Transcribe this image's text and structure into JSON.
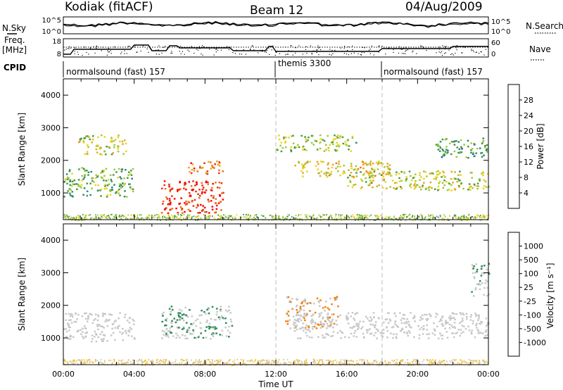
{
  "header": {
    "station": "Kodiak (fitACF)",
    "beam": "Beam 12",
    "date": "04/Aug/2009"
  },
  "side_labels": {
    "nsky": "N.Sky",
    "nsearch": "N.Search",
    "freq_line1": "Freq.",
    "freq_line2": "[MHz]",
    "nave": "Nave",
    "cpid": "CPID"
  },
  "noise_axis": {
    "left_ticks": [
      "10^5",
      "10^0"
    ],
    "right_ticks": [
      "10^5",
      "10^0"
    ]
  },
  "freq_axis": {
    "left_ticks": [
      "18",
      "8"
    ],
    "right_ticks": [
      "60",
      "0"
    ]
  },
  "cpid_segments": [
    {
      "label": "normalsound (fast) 157",
      "start_hour": 0,
      "end_hour": 12
    },
    {
      "label": "themis 3300",
      "start_hour": 12,
      "end_hour": 18
    },
    {
      "label": "normalsound (fast) 157",
      "start_hour": 18,
      "end_hour": 24
    }
  ],
  "power_colorbar": {
    "label": "Power [dB]",
    "ticks": [
      "4",
      "8",
      "12",
      "16",
      "20",
      "24",
      "28"
    ],
    "colors": [
      "#0000ff",
      "#1a4dbd",
      "#2d8a6e",
      "#4a9a3a",
      "#9ec83a",
      "#e8d320",
      "#f0a020",
      "#f07010",
      "#e83010",
      "#ff0000"
    ]
  },
  "velocity_colorbar": {
    "label": "Velocity [m s⁻¹]",
    "ticks": [
      "1000",
      "500",
      "100",
      "25",
      "-25",
      "-100",
      "-500",
      "-1000"
    ],
    "colors": [
      "#1a3dcc",
      "#2a5aa0",
      "#2e8b57",
      "#4cc84c",
      "#cccccc",
      "#f0c040",
      "#f08010",
      "#ff3000"
    ]
  },
  "axes": {
    "ylabel": "Slant Range [km]",
    "y_ticks": [
      "1000",
      "2000",
      "3000",
      "4000"
    ],
    "x_ticks": [
      "00:00",
      "04:00",
      "08:00",
      "12:00",
      "16:00",
      "20:00",
      "00:00"
    ],
    "xlabel": "Time UT"
  },
  "chart_data": [
    {
      "type": "heatmap",
      "title": "",
      "quantity": "Power [dB]",
      "xlabel": "Time UT",
      "ylabel": "Slant Range [km]",
      "x_range_hours": [
        0,
        24
      ],
      "y_range_km": [
        180,
        4500
      ],
      "scatter_regions": [
        {
          "t0": 0.0,
          "t1": 4.0,
          "r0": 900,
          "r1": 1800,
          "level": 12
        },
        {
          "t0": 0.8,
          "t1": 3.5,
          "r0": 2200,
          "r1": 2800,
          "level": 16
        },
        {
          "t0": 5.5,
          "t1": 9.0,
          "r0": 400,
          "r1": 1400,
          "level": 28
        },
        {
          "t0": 7.0,
          "t1": 9.0,
          "r0": 1600,
          "r1": 2000,
          "level": 24
        },
        {
          "t0": 12.0,
          "t1": 16.5,
          "r0": 2300,
          "r1": 2800,
          "level": 14
        },
        {
          "t0": 13.0,
          "t1": 18.5,
          "r0": 1500,
          "r1": 2000,
          "level": 18
        },
        {
          "t0": 16.0,
          "t1": 24.0,
          "r0": 1100,
          "r1": 1700,
          "level": 16
        },
        {
          "t0": 21.0,
          "t1": 24.0,
          "r0": 2100,
          "r1": 2700,
          "level": 10
        }
      ]
    },
    {
      "type": "heatmap",
      "title": "",
      "quantity": "Velocity [m s⁻¹]",
      "xlabel": "Time UT",
      "ylabel": "Slant Range [km]",
      "x_range_hours": [
        0,
        24
      ],
      "y_range_km": [
        180,
        4500
      ],
      "scatter_regions": [
        {
          "t0": 0.0,
          "t1": 4.0,
          "r0": 900,
          "r1": 1800,
          "velocity": 0
        },
        {
          "t0": 5.5,
          "t1": 9.5,
          "r0": 1000,
          "r1": 2000,
          "velocity": 300
        },
        {
          "t0": 12.5,
          "t1": 15.5,
          "r0": 1300,
          "r1": 2300,
          "velocity": -300
        },
        {
          "t0": 13.0,
          "t1": 24.0,
          "r0": 1000,
          "r1": 1800,
          "velocity": 0
        },
        {
          "t0": 23.0,
          "t1": 24.0,
          "r0": 2300,
          "r1": 3300,
          "velocity": 300
        }
      ]
    }
  ]
}
